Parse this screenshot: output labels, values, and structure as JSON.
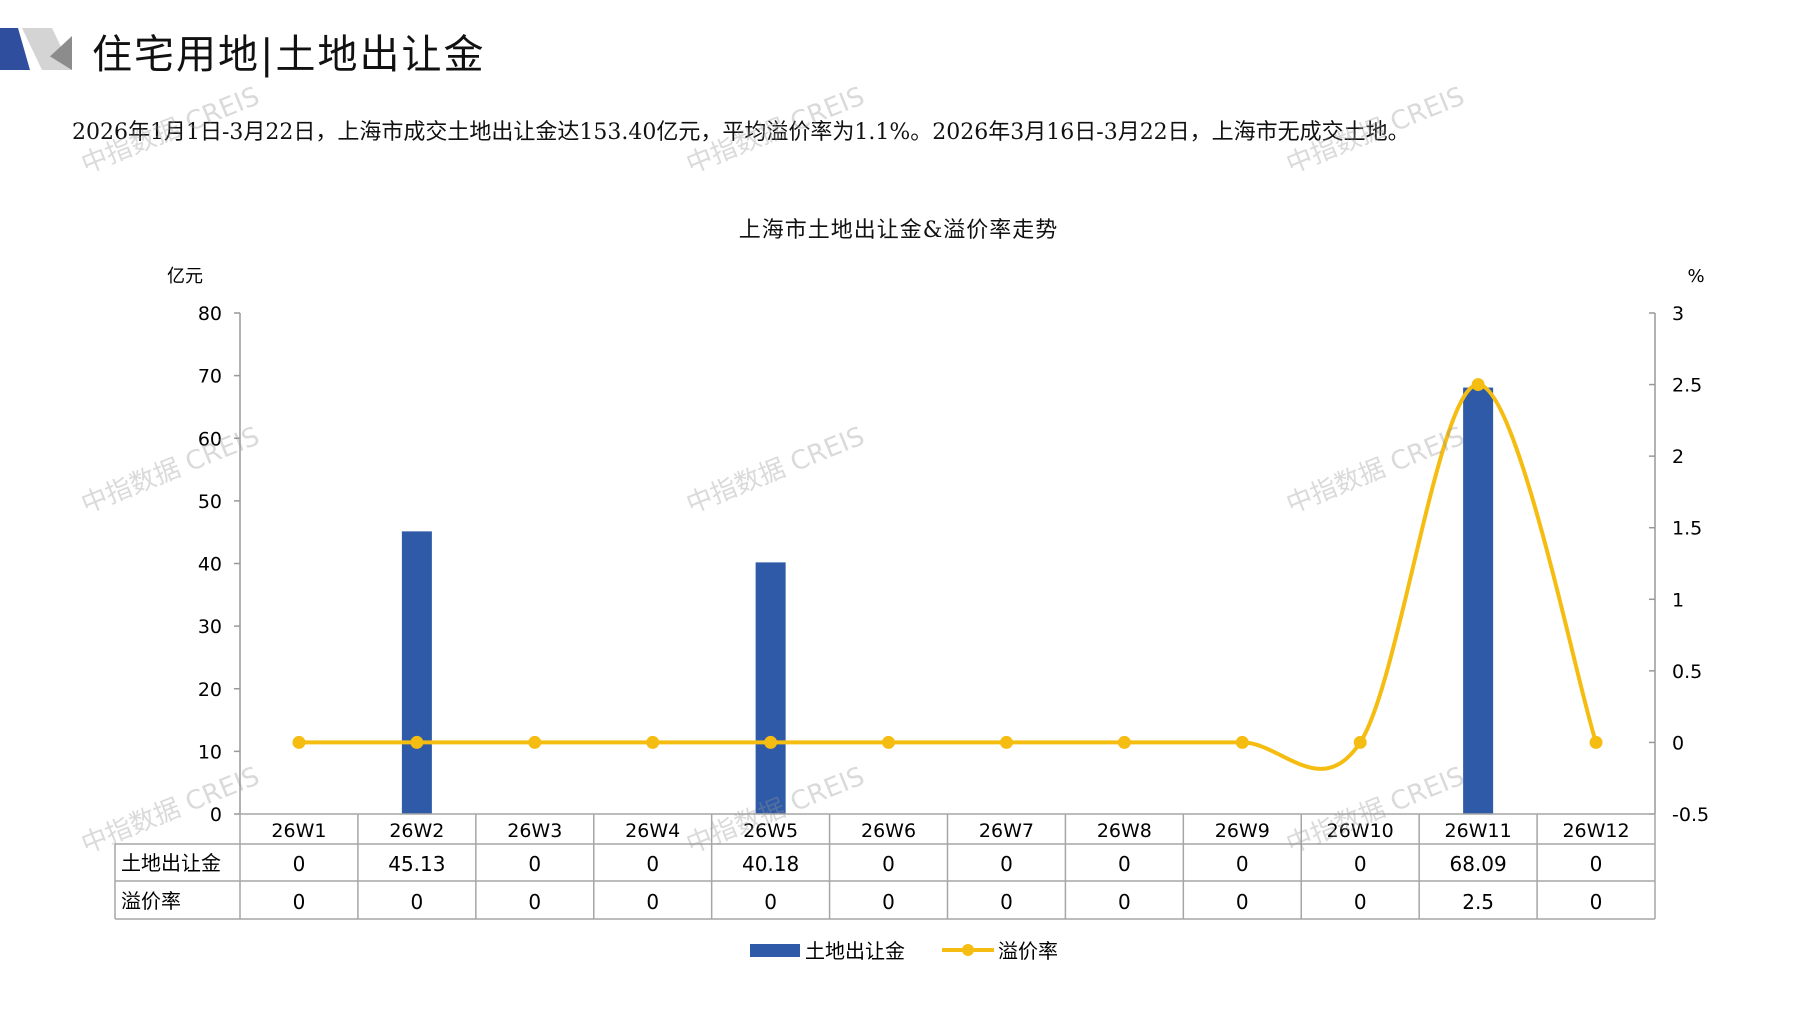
{
  "header": {
    "title": "住宅用地|土地出让金",
    "summary": "2026年1月1日-3月22日，上海市成交土地出让金达153.40亿元，平均溢价率为1.1%。2026年3月16日-3月22日，上海市无成交土地。"
  },
  "watermark": "中指数据 CREIS",
  "colors": {
    "bar": "#2e5aa8",
    "line": "#f5bd12",
    "axis": "#999999",
    "table_border": "#a6a6a6"
  },
  "chart_data": {
    "type": "bar+line",
    "title": "上海市土地出让金&溢价率走势",
    "left_unit": "亿元",
    "right_unit": "%",
    "categories": [
      "26W1",
      "26W2",
      "26W3",
      "26W4",
      "26W5",
      "26W6",
      "26W7",
      "26W8",
      "26W9",
      "26W10",
      "26W11",
      "26W12"
    ],
    "left_axis": {
      "min": 0,
      "max": 80,
      "step": 10,
      "ticks": [
        "0",
        "10",
        "20",
        "30",
        "40",
        "50",
        "60",
        "70",
        "80"
      ]
    },
    "right_axis": {
      "min": -0.5,
      "max": 3,
      "step": 0.5,
      "ticks": [
        "-0.5",
        "0",
        "0.5",
        "1",
        "1.5",
        "2",
        "2.5",
        "3"
      ]
    },
    "series": [
      {
        "name": "土地出让金",
        "type": "bar",
        "axis": "left",
        "values": [
          0,
          45.13,
          0,
          0,
          40.18,
          0,
          0,
          0,
          0,
          0,
          68.09,
          0
        ],
        "labels": [
          "0",
          "45.13",
          "0",
          "0",
          "40.18",
          "0",
          "0",
          "0",
          "0",
          "0",
          "68.09",
          "0"
        ]
      },
      {
        "name": "溢价率",
        "type": "line",
        "axis": "right",
        "smooth": true,
        "values": [
          0,
          0,
          0,
          0,
          0,
          0,
          0,
          0,
          0,
          0,
          2.5,
          0
        ],
        "labels": [
          "0",
          "0",
          "0",
          "0",
          "0",
          "0",
          "0",
          "0",
          "0",
          "0",
          "2.5",
          "0"
        ]
      }
    ],
    "legend": "bottom",
    "grid": false,
    "data_table": true
  }
}
